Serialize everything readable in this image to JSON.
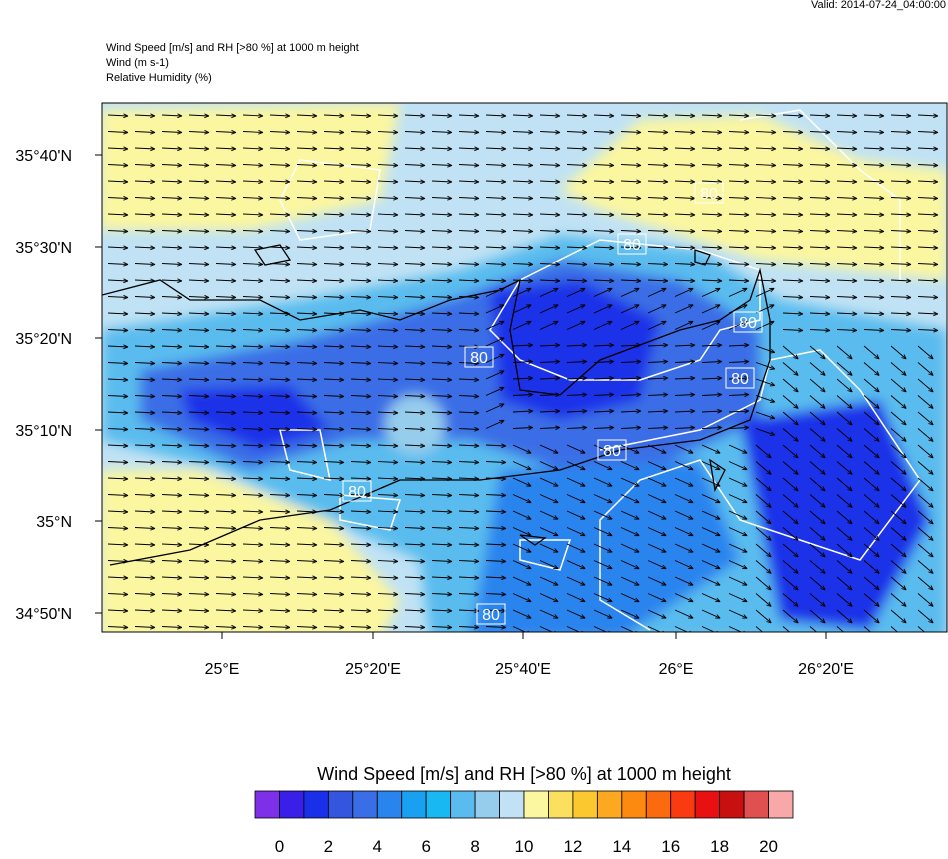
{
  "header": {
    "valid": "Valid: 2014-07-24_04:00:00",
    "lines": [
      "Wind Speed [m/s] and RH [>80 %] at 1000 m height",
      "Wind   (m s-1)",
      "Relative Humidity   (%)"
    ]
  },
  "map": {
    "lat_labels": [
      "35°40'N",
      "35°30'N",
      "35°20'N",
      "35°10'N",
      "35°N",
      "34°50'N"
    ],
    "lon_labels": [
      "25°E",
      "25°20'E",
      "25°40'E",
      "26°E",
      "26°20'E"
    ],
    "contour_labels": [
      "80",
      "80",
      "80",
      "80",
      "80",
      "80",
      "80",
      "80"
    ]
  },
  "colorbar": {
    "title": "Wind Speed [m/s] and RH [>80 %] at 1000 m height",
    "colors": [
      "#7e2fe8",
      "#3a1fe8",
      "#1a30e8",
      "#3456de",
      "#3a6ee6",
      "#2a84ee",
      "#1aa0f0",
      "#18b8f2",
      "#5abcee",
      "#96cdec",
      "#c0e2f4",
      "#fbf6a0",
      "#fbe060",
      "#fcc830",
      "#fca820",
      "#fc8a10",
      "#fc6a10",
      "#fa3a10",
      "#e81010",
      "#c81010",
      "#e05050",
      "#f8a8a8"
    ],
    "labels": [
      "0",
      "2",
      "4",
      "6",
      "8",
      "10",
      "12",
      "14",
      "16",
      "18",
      "20"
    ]
  }
}
